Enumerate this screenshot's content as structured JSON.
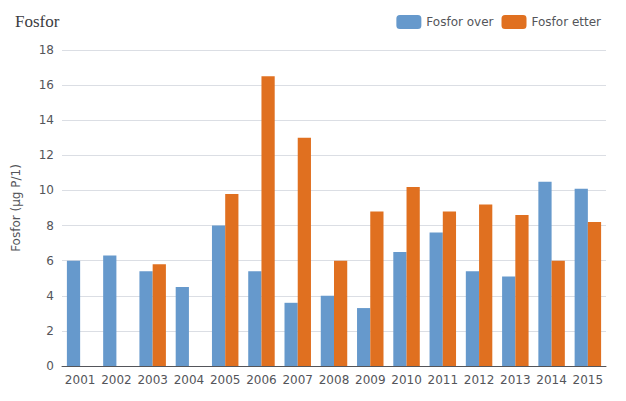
{
  "chart_data": {
    "type": "bar",
    "title": "Fosfor",
    "ylabel": "Fosfor (µg P/1)",
    "categories": [
      "2001",
      "2002",
      "2003",
      "2004",
      "2005",
      "2006",
      "2007",
      "2008",
      "2009",
      "2010",
      "2011",
      "2012",
      "2013",
      "2014",
      "2015"
    ],
    "series": [
      {
        "name": "Fosfor over",
        "color": "#6699CC",
        "values": [
          6.0,
          6.3,
          5.4,
          4.5,
          8.0,
          5.4,
          3.6,
          4.0,
          3.3,
          6.5,
          7.6,
          5.4,
          5.1,
          10.5,
          10.1
        ]
      },
      {
        "name": "Fosfor etter",
        "color": "#E07020",
        "values": [
          null,
          null,
          5.8,
          null,
          9.8,
          16.5,
          13.0,
          6.0,
          8.8,
          10.2,
          8.8,
          9.2,
          8.6,
          6.0,
          8.2
        ]
      }
    ],
    "ylim": [
      0,
      18
    ],
    "yticks": [
      0,
      2,
      4,
      6,
      8,
      10,
      12,
      14,
      16,
      18
    ],
    "grid": true,
    "legend": "upper right"
  }
}
